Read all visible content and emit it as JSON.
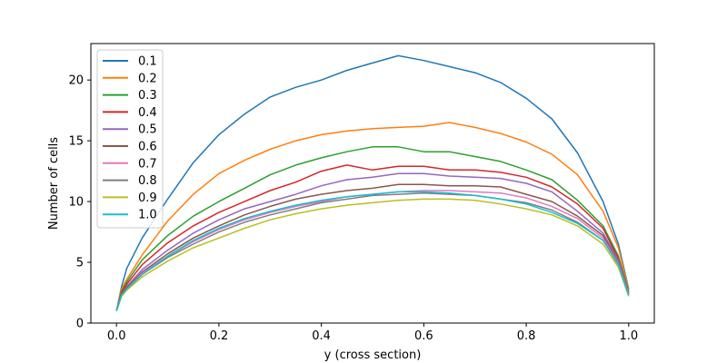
{
  "chart_data": {
    "type": "line",
    "xlabel": "y (cross section)",
    "ylabel": "Number of cells",
    "xlim": [
      -0.05,
      1.05
    ],
    "ylim": [
      0,
      23
    ],
    "xticks": [
      0.0,
      0.2,
      0.4,
      0.6,
      0.8,
      1.0
    ],
    "xtick_labels": [
      "0.0",
      "0.2",
      "0.4",
      "0.6",
      "0.8",
      "1.0"
    ],
    "yticks": [
      0,
      5,
      10,
      15,
      20
    ],
    "ytick_labels": [
      "0",
      "5",
      "10",
      "15",
      "20"
    ],
    "grid": false,
    "legend_position": "top-left",
    "x": [
      0.0,
      0.01,
      0.02,
      0.05,
      0.1,
      0.15,
      0.2,
      0.25,
      0.3,
      0.35,
      0.4,
      0.45,
      0.5,
      0.55,
      0.6,
      0.65,
      0.7,
      0.75,
      0.8,
      0.85,
      0.9,
      0.95,
      0.98,
      1.0
    ],
    "series": [
      {
        "name": "0.1",
        "color": "#1f77b4",
        "values": [
          1.0,
          3.0,
          4.5,
          7.0,
          10.2,
          13.2,
          15.5,
          17.2,
          18.6,
          19.4,
          20.0,
          20.8,
          21.4,
          22.0,
          21.6,
          21.1,
          20.6,
          19.8,
          18.5,
          16.8,
          14.0,
          10.0,
          6.5,
          2.8
        ]
      },
      {
        "name": "0.2",
        "color": "#ff7f0e",
        "values": [
          1.0,
          2.8,
          3.6,
          5.6,
          8.4,
          10.6,
          12.3,
          13.4,
          14.3,
          15.0,
          15.5,
          15.8,
          16.0,
          16.1,
          16.2,
          16.5,
          16.1,
          15.6,
          14.9,
          13.9,
          12.2,
          9.2,
          6.2,
          2.7
        ]
      },
      {
        "name": "0.3",
        "color": "#2ca02c",
        "values": [
          1.0,
          2.6,
          3.4,
          5.2,
          7.2,
          8.8,
          10.0,
          11.1,
          12.2,
          13.0,
          13.6,
          14.1,
          14.5,
          14.5,
          14.1,
          14.1,
          13.7,
          13.3,
          12.6,
          11.8,
          10.1,
          8.0,
          5.5,
          2.6
        ]
      },
      {
        "name": "0.4",
        "color": "#d62728",
        "values": [
          1.0,
          2.5,
          3.2,
          4.8,
          6.6,
          8.0,
          9.1,
          10.0,
          10.9,
          11.6,
          12.5,
          13.0,
          12.6,
          12.9,
          12.9,
          12.6,
          12.6,
          12.4,
          12.0,
          11.2,
          9.8,
          7.8,
          5.3,
          2.5
        ]
      },
      {
        "name": "0.5",
        "color": "#9467bd",
        "values": [
          1.0,
          2.4,
          3.0,
          4.4,
          6.0,
          7.4,
          8.5,
          9.4,
          10.0,
          10.6,
          11.3,
          11.8,
          12.0,
          12.3,
          12.3,
          12.1,
          12.0,
          11.9,
          11.5,
          10.8,
          9.2,
          7.4,
          5.2,
          2.5
        ]
      },
      {
        "name": "0.6",
        "color": "#8c564b",
        "values": [
          1.0,
          2.4,
          2.9,
          4.2,
          5.7,
          7.0,
          8.0,
          8.9,
          9.6,
          10.2,
          10.6,
          10.9,
          11.1,
          11.4,
          11.4,
          11.3,
          11.3,
          11.2,
          10.6,
          10.0,
          8.8,
          7.2,
          5.0,
          2.4
        ]
      },
      {
        "name": "0.7",
        "color": "#e377c2",
        "values": [
          1.0,
          2.3,
          2.8,
          4.1,
          5.5,
          6.7,
          7.7,
          8.5,
          9.1,
          9.6,
          10.0,
          10.4,
          10.6,
          10.8,
          10.9,
          10.9,
          10.8,
          10.7,
          10.3,
          9.6,
          8.6,
          7.0,
          4.9,
          2.4
        ]
      },
      {
        "name": "0.8",
        "color": "#7f7f7f",
        "values": [
          1.0,
          2.3,
          2.8,
          4.0,
          5.4,
          6.5,
          7.5,
          8.3,
          8.9,
          9.4,
          9.9,
          10.2,
          10.5,
          10.6,
          10.7,
          10.6,
          10.5,
          10.2,
          9.9,
          9.3,
          8.3,
          6.8,
          4.8,
          2.3
        ]
      },
      {
        "name": "0.9",
        "color": "#bcbd22",
        "values": [
          1.0,
          2.2,
          2.7,
          3.8,
          5.1,
          6.2,
          7.0,
          7.8,
          8.5,
          9.0,
          9.4,
          9.7,
          9.9,
          10.1,
          10.2,
          10.2,
          10.1,
          9.8,
          9.4,
          8.9,
          8.0,
          6.5,
          4.6,
          2.2
        ]
      },
      {
        "name": "1.0",
        "color": "#17becf",
        "values": [
          1.0,
          2.3,
          2.8,
          4.0,
          5.5,
          6.8,
          7.8,
          8.6,
          9.2,
          9.7,
          10.1,
          10.4,
          10.6,
          10.8,
          10.8,
          10.7,
          10.5,
          10.2,
          9.8,
          9.1,
          8.2,
          6.8,
          4.8,
          2.3
        ]
      }
    ]
  }
}
